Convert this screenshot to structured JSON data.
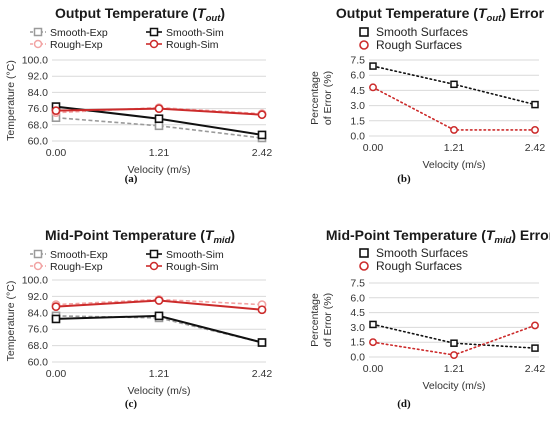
{
  "chart_data": [
    {
      "id": "a",
      "panel_label": "(a)",
      "type": "line",
      "title": {
        "main": "Output Temperature (",
        "italic": "T",
        "sub": "out",
        "close": ")"
      },
      "xlabel": "Velocity (m/s)",
      "ylabel": "Temperature (°C)",
      "categories": [
        "0.00",
        "1.21",
        "2.42"
      ],
      "ylim": [
        60,
        100
      ],
      "yticks": [
        "60.0",
        "68.0",
        "76.0",
        "84.0",
        "92.0",
        "100.0"
      ],
      "series": [
        {
          "name": "Smooth-Exp",
          "values": [
            71.5,
            67.5,
            61.5
          ],
          "color": "#9a9a9a",
          "dashed": true
        },
        {
          "name": "Rough-Exp",
          "values": [
            74.0,
            76.5,
            73.5
          ],
          "color": "#f2a3a3",
          "dashed": true
        },
        {
          "name": "Smooth-Sim",
          "values": [
            77.0,
            71.0,
            63.0
          ],
          "color": "#111111",
          "dashed": false
        },
        {
          "name": "Rough-Sim",
          "values": [
            75.0,
            76.0,
            73.0
          ],
          "color": "#cc2b2b",
          "dashed": false
        }
      ]
    },
    {
      "id": "b",
      "panel_label": "(b)",
      "type": "line",
      "title": {
        "main": "Output Temperature (",
        "italic": "T",
        "sub": "out",
        "close": ") Error"
      },
      "xlabel": "Velocity (m/s)",
      "ylabel_lines": [
        "Percentage",
        "of Error (%)"
      ],
      "categories": [
        "0.00",
        "1.21",
        "2.42"
      ],
      "ylim": [
        0,
        7.5
      ],
      "yticks": [
        "0.0",
        "1.5",
        "3.0",
        "4.5",
        "6.0",
        "7.5"
      ],
      "series": [
        {
          "name": "Smooth Surfaces",
          "values": [
            6.9,
            5.1,
            3.1
          ],
          "color": "#111111",
          "marker": "square"
        },
        {
          "name": "Rough Surfaces",
          "values": [
            4.8,
            0.6,
            0.6
          ],
          "color": "#cc2b2b",
          "marker": "circle"
        }
      ]
    },
    {
      "id": "c",
      "panel_label": "(c)",
      "type": "line",
      "title": {
        "main": "Mid-Point Temperature (",
        "italic": "T",
        "sub": "mid",
        "close": ")"
      },
      "xlabel": "Velocity (m/s)",
      "ylabel": "Temperature (°C)",
      "categories": [
        "0.00",
        "1.21",
        "2.42"
      ],
      "ylim": [
        60,
        100
      ],
      "yticks": [
        "60.0",
        "68.0",
        "76.0",
        "84.0",
        "92.0",
        "100.0"
      ],
      "series": [
        {
          "name": "Smooth-Exp",
          "values": [
            82.5,
            81.5,
            69.5
          ],
          "color": "#9a9a9a",
          "dashed": true
        },
        {
          "name": "Rough-Exp",
          "values": [
            88.0,
            90.5,
            88.0
          ],
          "color": "#f2a3a3",
          "dashed": true
        },
        {
          "name": "Smooth-Sim",
          "values": [
            81.0,
            82.5,
            69.5
          ],
          "color": "#111111",
          "dashed": false
        },
        {
          "name": "Rough-Sim",
          "values": [
            87.0,
            90.0,
            85.5
          ],
          "color": "#cc2b2b",
          "dashed": false
        }
      ]
    },
    {
      "id": "d",
      "panel_label": "(d)",
      "type": "line",
      "title": {
        "main": "Mid-Point Temperature (",
        "italic": "T",
        "sub": "mid",
        "close": ") Error"
      },
      "xlabel": "Velocity (m/s)",
      "ylabel_lines": [
        "Percentage",
        "of Error (%)"
      ],
      "categories": [
        "0.00",
        "1.21",
        "2.42"
      ],
      "ylim": [
        0,
        7.5
      ],
      "yticks": [
        "0.0",
        "1.5",
        "3.0",
        "4.5",
        "6.0",
        "7.5"
      ],
      "series": [
        {
          "name": "Smooth Surfaces",
          "values": [
            3.3,
            1.4,
            0.9
          ],
          "color": "#111111",
          "marker": "square"
        },
        {
          "name": "Rough Surfaces",
          "values": [
            1.5,
            0.2,
            3.2
          ],
          "color": "#cc2b2b",
          "marker": "circle"
        }
      ]
    }
  ]
}
